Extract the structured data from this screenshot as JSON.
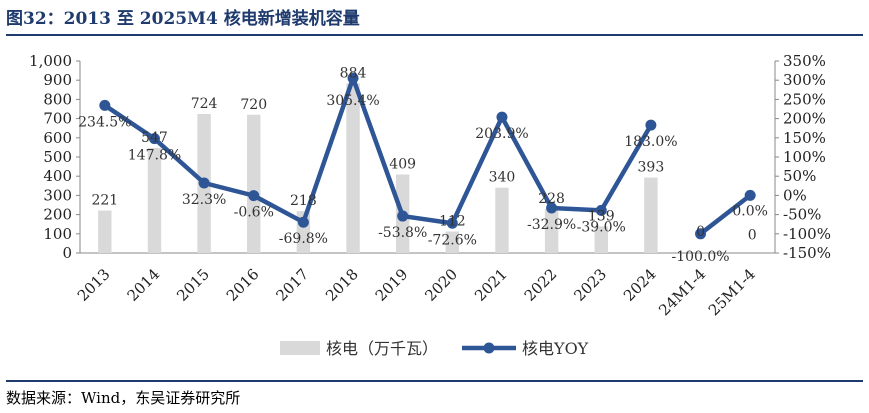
{
  "title": "图32：2013 至 2025M4 核电新增装机容量",
  "source": "数据来源：Wind，东吴证券研究所",
  "colors": {
    "bar": "#d9d9d9",
    "line": "#2e5596",
    "accent": "#1f3b6e"
  },
  "chart_data": {
    "type": "bar+line",
    "categories": [
      "2013",
      "2014",
      "2015",
      "2016",
      "2017",
      "2018",
      "2019",
      "2020",
      "2021",
      "2022",
      "2023",
      "2024",
      "24M1-4",
      "25M1-4"
    ],
    "series": [
      {
        "name": "核电（万千瓦）",
        "type": "bar",
        "axis": "left",
        "values": [
          221,
          547,
          724,
          720,
          218,
          884,
          409,
          112,
          340,
          228,
          139,
          393,
          0,
          0
        ],
        "labels": [
          "221",
          "547",
          "724",
          "720",
          "218",
          "884",
          "409",
          "112",
          "340",
          "228",
          "139",
          "393",
          "0",
          "0"
        ]
      },
      {
        "name": "核电YOY",
        "type": "line",
        "axis": "right",
        "values": [
          234.5,
          147.8,
          32.3,
          -0.6,
          -69.8,
          305.4,
          -53.8,
          -72.6,
          203.9,
          -32.9,
          -39.0,
          183.0,
          -100.0,
          0.0
        ],
        "labels": [
          "234.5%",
          "147.8%",
          "32.3%",
          "-0.6%",
          "-69.8%",
          "305.4%",
          "-53.8%",
          "-72.6%",
          "203.9%",
          "-32.9%",
          "-39.0%",
          "183.0%",
          "-100.0%",
          "0.0%"
        ]
      }
    ],
    "left_axis": {
      "min": 0,
      "max": 1000,
      "step": 100,
      "ticks": [
        "0",
        "100",
        "200",
        "300",
        "400",
        "500",
        "600",
        "700",
        "800",
        "900",
        "1,000"
      ]
    },
    "right_axis": {
      "min": -150,
      "max": 350,
      "step": 50,
      "ticks": [
        "-150%",
        "-100%",
        "-50%",
        "0%",
        "50%",
        "100%",
        "150%",
        "200%",
        "250%",
        "300%",
        "350%"
      ]
    },
    "legend": {
      "position": "bottom"
    },
    "grid": false
  }
}
